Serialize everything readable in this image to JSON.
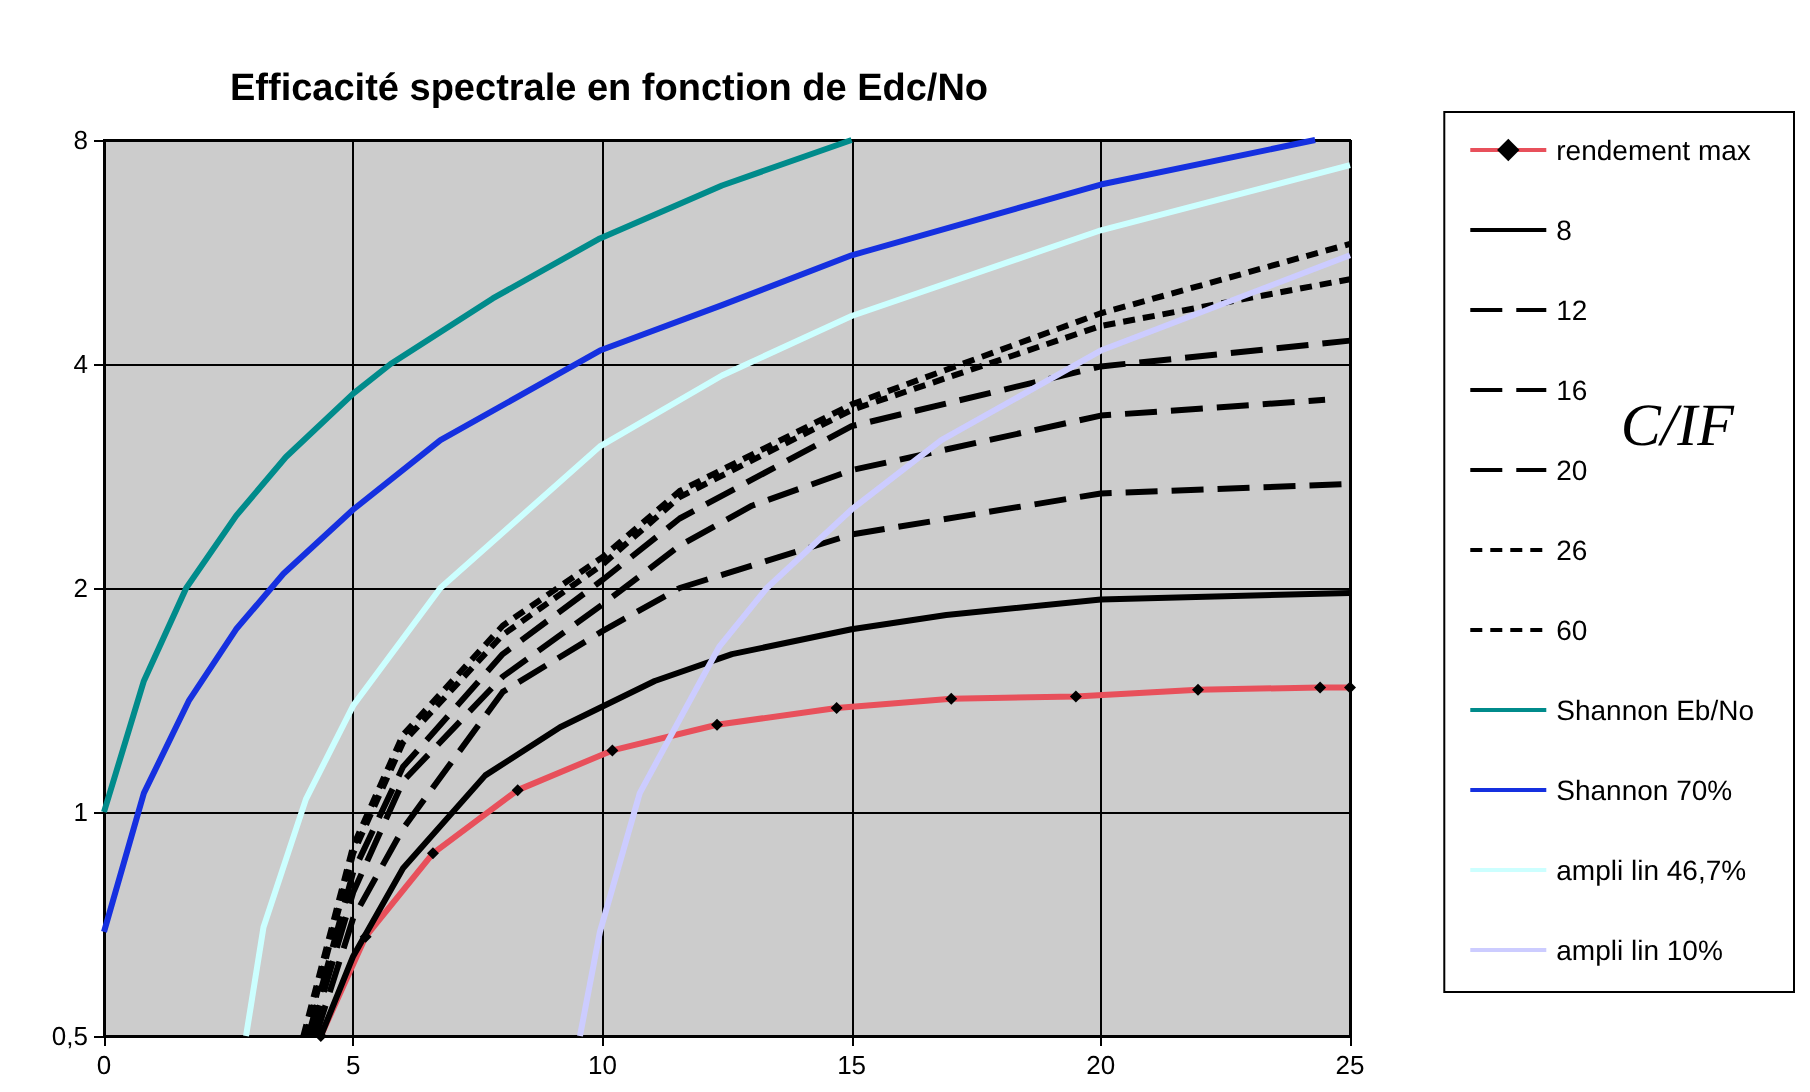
{
  "chart_data": {
    "type": "line",
    "title": "Efficacité spectrale en fonction de Edc/No",
    "xlim": [
      0,
      25
    ],
    "xticks": [
      0,
      5,
      10,
      15,
      20,
      25
    ],
    "ylim": [
      0.5,
      8
    ],
    "yticks": [
      {
        "value": 0.5,
        "label": "0,5"
      },
      1,
      2,
      4,
      8
    ],
    "log": "y",
    "grid": true,
    "legend": "right",
    "line_style": "solid",
    "marker": "none",
    "annotations": [
      "C/IF"
    ],
    "series": [
      {
        "name": "rendement max",
        "color": "#e8505b",
        "marker": "diamond",
        "x": [
          4.35,
          5.25,
          6.6,
          8.3,
          10.2,
          12.3,
          14.7,
          17,
          19.5,
          21.95,
          24.4,
          25
        ],
        "values": [
          0.5,
          0.68,
          0.88,
          1.07,
          1.21,
          1.31,
          1.38,
          1.42,
          1.43,
          1.46,
          1.47,
          1.47
        ]
      },
      {
        "name": "8",
        "color": "#000000",
        "x": [
          4.35,
          5,
          6,
          7.65,
          9.15,
          11.05,
          12.6,
          15,
          16.9,
          20,
          25
        ],
        "values": [
          0.5,
          0.64,
          0.84,
          1.12,
          1.3,
          1.5,
          1.63,
          1.76,
          1.84,
          1.93,
          1.97
        ]
      },
      {
        "name": "12",
        "color": "#000000",
        "line_style": "dashed",
        "x": [
          4.25,
          5,
          6,
          8,
          10,
          11.55,
          15,
          20,
          25
        ],
        "values": [
          0.5,
          0.72,
          0.95,
          1.45,
          1.75,
          2.0,
          2.36,
          2.68,
          2.76
        ]
      },
      {
        "name": "16",
        "color": "#000000",
        "line_style": "dashed",
        "x": [
          4.15,
          5,
          6,
          8,
          10,
          11.55,
          13,
          15,
          20,
          24.5
        ],
        "values": [
          0.5,
          0.78,
          1.1,
          1.52,
          1.9,
          2.28,
          2.58,
          2.88,
          3.41,
          3.58
        ]
      },
      {
        "name": "20",
        "color": "#000000",
        "line_style": "dashed",
        "x": [
          4.1,
          5,
          6,
          8,
          10,
          11.55,
          15,
          20,
          25
        ],
        "values": [
          0.5,
          0.83,
          1.15,
          1.63,
          2.05,
          2.48,
          3.3,
          3.97,
          4.3
        ]
      },
      {
        "name": "26",
        "color": "#000000",
        "line_style": "dotted",
        "x": [
          4.05,
          5,
          6,
          8,
          10,
          11.55,
          15,
          20,
          25
        ],
        "values": [
          0.5,
          0.88,
          1.24,
          1.73,
          2.15,
          2.65,
          3.47,
          4.5,
          5.2
        ]
      },
      {
        "name": "60",
        "color": "#000000",
        "line_style": "dotted",
        "x": [
          4.0,
          5,
          6,
          8,
          10,
          11.55,
          15,
          20,
          25
        ],
        "values": [
          0.5,
          0.9,
          1.27,
          1.78,
          2.2,
          2.7,
          3.53,
          4.68,
          5.8
        ]
      },
      {
        "name": "Shannon Eb/No",
        "color": "#008b8b",
        "x": [
          0,
          0.8,
          1.65,
          2.65,
          3.65,
          5,
          5.75,
          7.8,
          9.95,
          12.4,
          15
        ],
        "values": [
          1.0,
          1.5,
          2.0,
          2.5,
          3.0,
          3.65,
          4.0,
          4.9,
          5.9,
          6.95,
          8
        ]
      },
      {
        "name": "Shannon 70%",
        "color": "#1530e0",
        "x": [
          0,
          0.8,
          1.7,
          2.65,
          3.6,
          5,
          6.75,
          9.95,
          12.4,
          15,
          20,
          24.3
        ],
        "values": [
          0.69,
          1.06,
          1.41,
          1.76,
          2.09,
          2.55,
          3.16,
          4.17,
          4.8,
          5.6,
          6.97,
          8
        ]
      },
      {
        "name": "ampli lin 46,7%",
        "color": "#ccffff",
        "x": [
          2.85,
          3.2,
          4.05,
          5,
          6.75,
          9.95,
          12.4,
          15,
          20,
          25
        ],
        "values": [
          0.5,
          0.7,
          1.04,
          1.39,
          2.0,
          3.1,
          3.86,
          4.64,
          6.05,
          7.4
        ]
      },
      {
        "name": "ampli lin 10%",
        "color": "#ccccff",
        "x": [
          9.55,
          9.95,
          10.75,
          11.7,
          12.35,
          13.3,
          15,
          16.8,
          20,
          25
        ],
        "values": [
          0.5,
          0.69,
          1.06,
          1.39,
          1.67,
          2.0,
          2.55,
          3.16,
          4.17,
          5.6
        ]
      }
    ]
  }
}
